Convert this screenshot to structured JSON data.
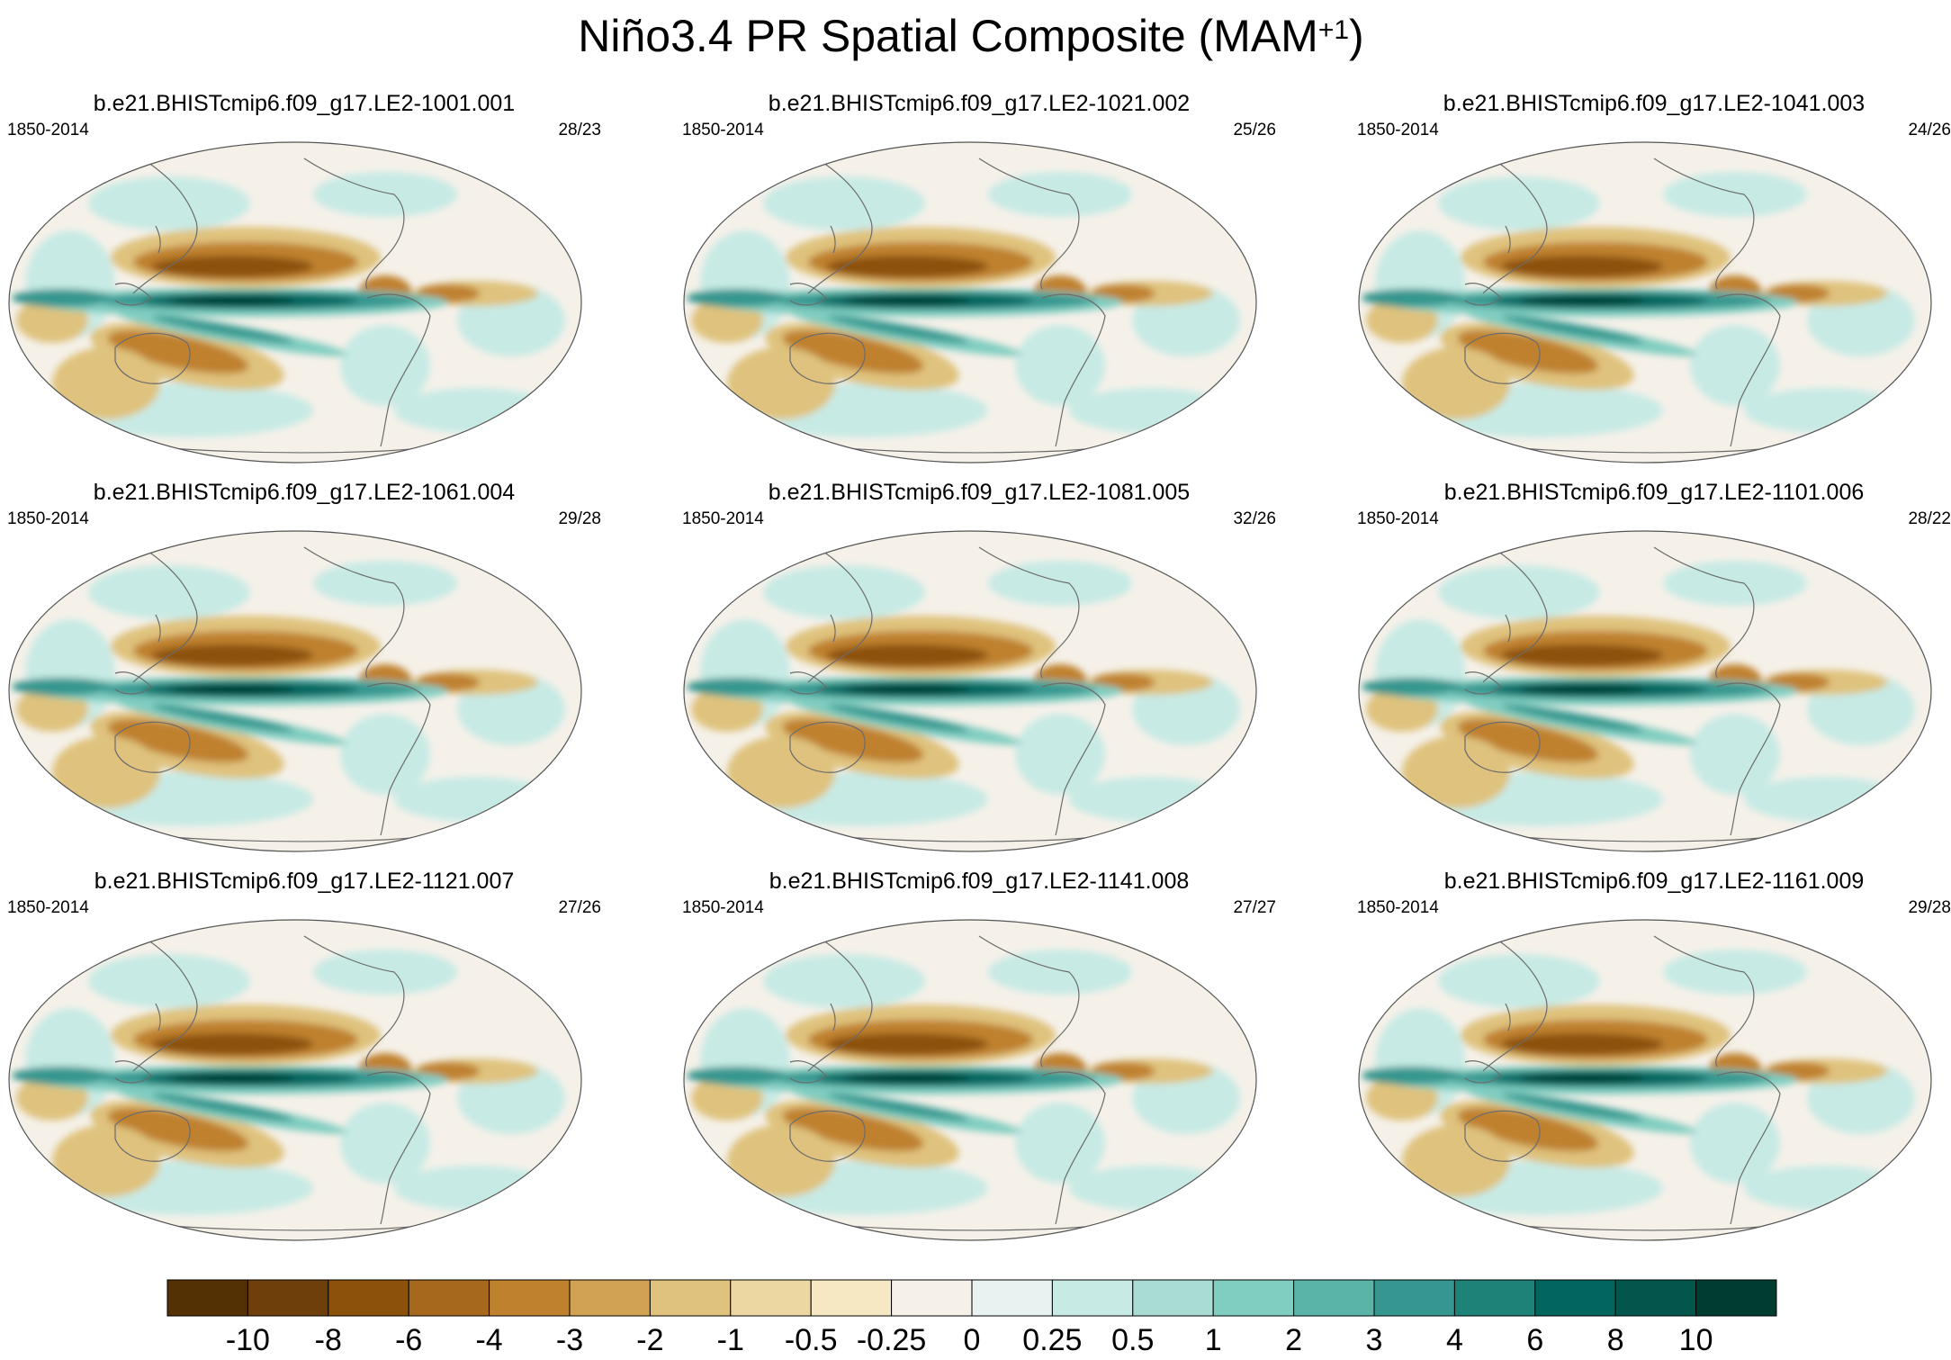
{
  "title": "Niño3.4 PR Spatial Composite (MAM",
  "title_superscript": "+1",
  "title_close": ")",
  "panels": [
    {
      "title": "b.e21.BHISTcmip6.f09_g17.LE2-1001.001",
      "years": "1850-2014",
      "count": "28/23"
    },
    {
      "title": "b.e21.BHISTcmip6.f09_g17.LE2-1021.002",
      "years": "1850-2014",
      "count": "25/26"
    },
    {
      "title": "b.e21.BHISTcmip6.f09_g17.LE2-1041.003",
      "years": "1850-2014",
      "count": "24/26"
    },
    {
      "title": "b.e21.BHISTcmip6.f09_g17.LE2-1061.004",
      "years": "1850-2014",
      "count": "29/28"
    },
    {
      "title": "b.e21.BHISTcmip6.f09_g17.LE2-1081.005",
      "years": "1850-2014",
      "count": "32/26"
    },
    {
      "title": "b.e21.BHISTcmip6.f09_g17.LE2-1101.006",
      "years": "1850-2014",
      "count": "28/22"
    },
    {
      "title": "b.e21.BHISTcmip6.f09_g17.LE2-1121.007",
      "years": "1850-2014",
      "count": "27/26"
    },
    {
      "title": "b.e21.BHISTcmip6.f09_g17.LE2-1141.008",
      "years": "1850-2014",
      "count": "27/27"
    },
    {
      "title": "b.e21.BHISTcmip6.f09_g17.LE2-1161.009",
      "years": "1850-2014",
      "count": "29/28"
    }
  ],
  "colorbar": {
    "colors": [
      "#543005",
      "#6f3f0b",
      "#8c510a",
      "#a6681c",
      "#bf812d",
      "#d1a254",
      "#dfc27d",
      "#ecd7a3",
      "#f6e8c3",
      "#f5f1e9",
      "#e7f2f1",
      "#c7eae5",
      "#a9ddd3",
      "#80cdc1",
      "#5ab4a8",
      "#35978f",
      "#1e8278",
      "#01665e",
      "#02564c",
      "#003c30"
    ],
    "labels": [
      "-10",
      "-8",
      "-6",
      "-4",
      "-3",
      "-2",
      "-1",
      "-0.5",
      "-0.25",
      "0",
      "0.25",
      "0.5",
      "1",
      "2",
      "3",
      "4",
      "6",
      "8",
      "10"
    ]
  },
  "map_colors": {
    "background": "#f5f1e9",
    "light_teal": "#c7eae5",
    "teal": "#80cdc1",
    "mid_teal": "#35978f",
    "dark_teal": "#01665e",
    "deepest_teal": "#003c30",
    "light_brown": "#dfc27d",
    "brown": "#bf812d",
    "dark_brown": "#8c510a",
    "coast": "#6b6b6b"
  }
}
